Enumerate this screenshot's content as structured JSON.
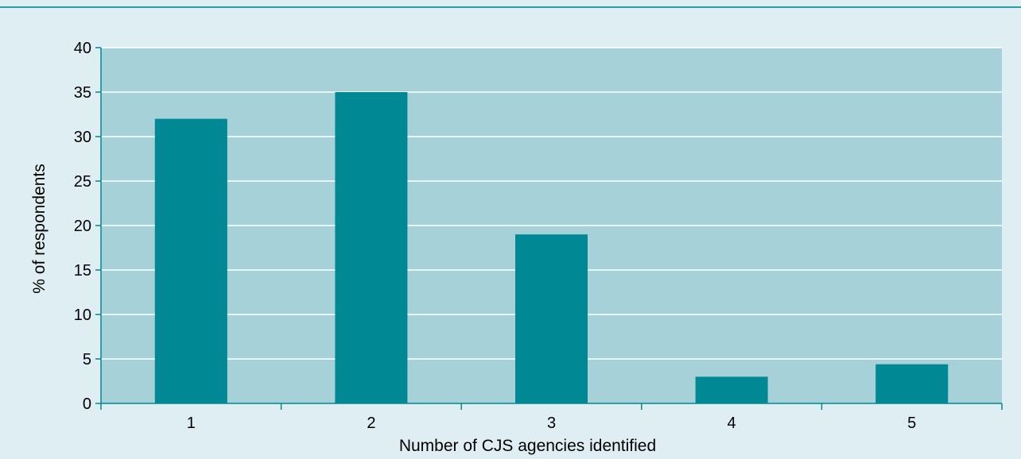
{
  "colors": {
    "page_background": "#dfeef2",
    "plot_background": "#a6d1d8",
    "bar": "#008995",
    "gridline": "#ffffff",
    "axis": "#00898f",
    "top_rule": "#2a9fa6"
  },
  "chart_data": {
    "type": "bar",
    "title": "",
    "xlabel": "Number of CJS agencies identified",
    "ylabel": "% of respondents",
    "categories": [
      "1",
      "2",
      "3",
      "4",
      "5"
    ],
    "values": [
      32,
      35,
      19,
      3,
      4.4
    ],
    "ylim": [
      0,
      40
    ],
    "yticks": [
      0,
      5,
      10,
      15,
      20,
      25,
      30,
      35,
      40
    ],
    "grid": true,
    "legend": "none"
  }
}
